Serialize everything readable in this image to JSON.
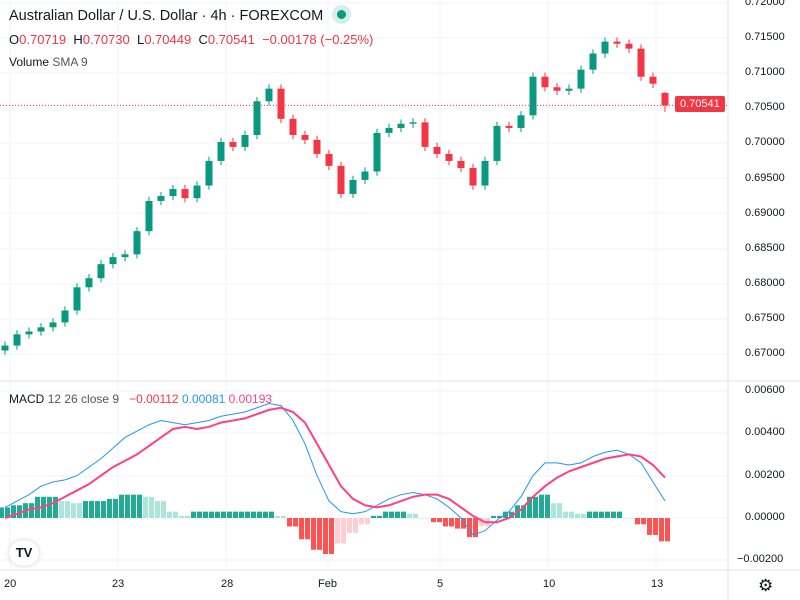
{
  "header": {
    "title": "Australian Dollar / U.S. Dollar · 4h · FOREXCOM",
    "ohlc": {
      "o_label": "O",
      "o": "0.70719",
      "h_label": "H",
      "h": "0.70730",
      "l_label": "L",
      "l": "0.70449",
      "c_label": "C",
      "c": "0.70541",
      "change": "−0.00178 (−0.25%)"
    },
    "volume_label": "Volume",
    "volume_sma": "SMA 9"
  },
  "macd_legend": {
    "name": "MACD",
    "params": "12 26 close 9",
    "hist": "−0.00112",
    "macd": "0.00081",
    "signal": "0.00193"
  },
  "price_axis": [
    "0.72000",
    "0.71500",
    "0.71000",
    "0.70500",
    "0.70000",
    "0.69500",
    "0.69000",
    "0.68500",
    "0.68000",
    "0.67500",
    "0.67000"
  ],
  "current_price": "0.70541",
  "macd_axis": [
    "0.00600",
    "0.00400",
    "0.00200",
    "0.00000",
    "−0.00200"
  ],
  "time_axis": [
    "20",
    "23",
    "28",
    "Feb",
    "5",
    "10",
    "13"
  ],
  "logo": "TV",
  "colors": {
    "up": "#089981",
    "down": "#f23645",
    "macd": "#2196f3",
    "signal": "#ff4081",
    "hist_up_strong": "#22ab94",
    "hist_up_weak": "#ace5dc",
    "hist_dn_strong": "#ff5252",
    "hist_dn_weak": "#ffcdd2"
  },
  "chart_data": {
    "type": "candlestick",
    "closes": [
      0.6712,
      0.6728,
      0.6732,
      0.6738,
      0.6745,
      0.6762,
      0.6795,
      0.6808,
      0.6828,
      0.6838,
      0.6842,
      0.6875,
      0.6918,
      0.6925,
      0.6935,
      0.6922,
      0.694,
      0.6975,
      0.7002,
      0.6995,
      0.7012,
      0.706,
      0.7078,
      0.7035,
      0.7012,
      0.7005,
      0.6985,
      0.6968,
      0.6928,
      0.6948,
      0.696,
      0.7015,
      0.7022,
      0.7028,
      0.703,
      0.6995,
      0.6985,
      0.6975,
      0.6965,
      0.694,
      0.6975,
      0.7025,
      0.7022,
      0.704,
      0.7095,
      0.708,
      0.7075,
      0.7078,
      0.7105,
      0.7128,
      0.7145,
      0.7142,
      0.7135,
      0.7095,
      0.7085,
      0.70541
    ],
    "first_open": 0.6705,
    "last": {
      "o": 0.70719,
      "h": 0.7073,
      "l": 0.70449,
      "c": 0.70541
    },
    "macd": [
      0.0005,
      0.0008,
      0.0011,
      0.0015,
      0.0017,
      0.0018,
      0.002,
      0.0024,
      0.0028,
      0.0033,
      0.0038,
      0.0041,
      0.0044,
      0.0046,
      0.0045,
      0.0044,
      0.0045,
      0.0046,
      0.0048,
      0.0049,
      0.005,
      0.0052,
      0.0054,
      0.0053,
      0.0046,
      0.0035,
      0.002,
      0.0008,
      0.0003,
      0.0002,
      0.0003,
      0.0006,
      0.0009,
      0.0011,
      0.0012,
      0.0011,
      0.0009,
      0.0005,
      0.0,
      -0.0008,
      -0.0006,
      -0.0001,
      0.0003,
      0.001,
      0.002,
      0.0026,
      0.0026,
      0.0025,
      0.0026,
      0.0029,
      0.0031,
      0.0032,
      0.003,
      0.0026,
      0.0017,
      0.0008
    ],
    "signal": [
      0.0,
      0.0002,
      0.0004,
      0.0005,
      0.0007,
      0.001,
      0.0013,
      0.0016,
      0.002,
      0.0024,
      0.0027,
      0.003,
      0.0034,
      0.0038,
      0.0042,
      0.0043,
      0.0042,
      0.0043,
      0.0045,
      0.0046,
      0.0047,
      0.0049,
      0.0051,
      0.0052,
      0.005,
      0.0045,
      0.0035,
      0.0025,
      0.0015,
      0.0009,
      0.0006,
      0.0005,
      0.0006,
      0.0008,
      0.001,
      0.0011,
      0.0011,
      0.0009,
      0.0005,
      0.0001,
      -0.0002,
      -0.0002,
      0.0,
      0.0004,
      0.001,
      0.0015,
      0.0019,
      0.0022,
      0.0024,
      0.0026,
      0.0028,
      0.0029,
      0.003,
      0.0029,
      0.0025,
      0.0019
    ],
    "price_range": [
      0.665,
      0.72
    ],
    "macd_range": [
      -0.0025,
      0.0065
    ]
  }
}
